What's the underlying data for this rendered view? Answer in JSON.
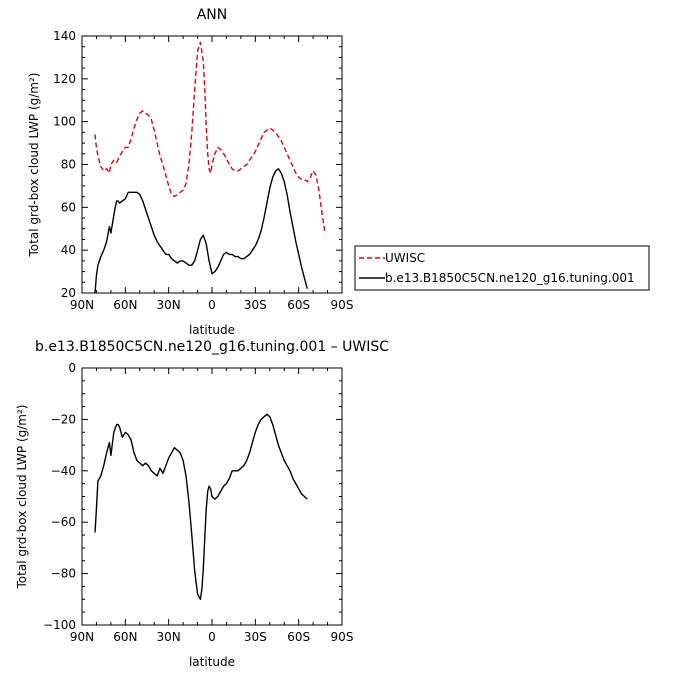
{
  "chart_data": [
    {
      "type": "line",
      "title": "ANN",
      "xlabel": "latitude",
      "ylabel": "Total grd-box cloud LWP (g/m²)",
      "xlim": [
        90,
        -90
      ],
      "ylim": [
        20,
        140
      ],
      "x_ticks": [
        90,
        60,
        30,
        0,
        -30,
        -60,
        -90
      ],
      "x_tick_labels": [
        "90N",
        "60N",
        "30N",
        "0",
        "30S",
        "60S",
        "90S"
      ],
      "y_ticks": [
        20,
        40,
        60,
        80,
        100,
        120,
        140
      ],
      "y_tick_labels": [
        "20",
        "40",
        "60",
        "80",
        "100",
        "120",
        "140"
      ],
      "legend": "right",
      "series": [
        {
          "name": "UWISC",
          "color": "#e8000b",
          "dash": "dashed",
          "x": [
            81,
            80,
            79,
            77,
            75,
            73,
            71,
            70,
            68,
            66,
            64,
            62,
            60,
            58,
            56,
            54,
            52,
            50,
            48,
            46,
            44,
            42,
            40,
            38,
            36,
            34,
            32,
            30,
            28,
            26,
            24,
            22,
            20,
            18,
            16,
            14,
            12,
            10,
            8,
            6,
            5,
            4,
            3,
            2,
            1,
            0,
            -2,
            -4,
            -6,
            -8,
            -10,
            -12,
            -14,
            -16,
            -18,
            -20,
            -22,
            -24,
            -26,
            -28,
            -30,
            -32,
            -34,
            -36,
            -38,
            -40,
            -42,
            -44,
            -46,
            -48,
            -50,
            -52,
            -54,
            -56,
            -58,
            -60,
            -62,
            -64,
            -66,
            -68,
            -70,
            -72,
            -74,
            -76,
            -78
          ],
          "y": [
            94,
            88,
            84,
            79,
            77,
            78,
            76,
            80,
            82,
            81,
            84,
            86,
            88,
            88,
            92,
            97,
            101,
            104,
            105,
            104,
            103,
            101,
            96,
            90,
            84,
            80,
            75,
            70,
            66,
            65,
            66,
            67,
            68,
            71,
            80,
            95,
            115,
            133,
            137,
            128,
            115,
            98,
            85,
            78,
            76,
            80,
            85,
            88,
            87,
            85,
            83,
            80,
            78,
            77,
            77,
            78,
            79,
            80,
            82,
            84,
            86,
            89,
            92,
            95,
            96,
            97,
            96,
            95,
            93,
            91,
            88,
            85,
            82,
            79,
            76,
            74,
            73,
            73,
            72,
            74,
            77,
            75,
            68,
            58,
            49
          ]
        },
        {
          "name": "b.e13.B1850C5CN.ne120_g16.tuning.001",
          "color": "#000000",
          "dash": "solid",
          "x": [
            81,
            80,
            79,
            77,
            75,
            73,
            71,
            70,
            69,
            67,
            66,
            65,
            64,
            62,
            60,
            58,
            56,
            54,
            52,
            50,
            48,
            46,
            44,
            42,
            40,
            38,
            36,
            34,
            32,
            30,
            28,
            26,
            24,
            22,
            20,
            18,
            16,
            14,
            12,
            10,
            8,
            6,
            4,
            2,
            0,
            -2,
            -4,
            -6,
            -8,
            -10,
            -12,
            -14,
            -16,
            -18,
            -20,
            -22,
            -24,
            -26,
            -28,
            -30,
            -32,
            -34,
            -36,
            -38,
            -40,
            -42,
            -44,
            -46,
            -48,
            -50,
            -52,
            -54,
            -56,
            -58,
            -60,
            -62,
            -64,
            -66
          ],
          "y": [
            20,
            28,
            33,
            37,
            40,
            44,
            51,
            48,
            52,
            60,
            63,
            63,
            62,
            63,
            64,
            67,
            67,
            67,
            67,
            66,
            63,
            59,
            55,
            51,
            47,
            44,
            42,
            40,
            38,
            38,
            36,
            35,
            34,
            35,
            35,
            34,
            33,
            33,
            35,
            40,
            45,
            47,
            43,
            35,
            29,
            30,
            32,
            35,
            38,
            39,
            38,
            38,
            37,
            37,
            36,
            36,
            37,
            38,
            40,
            42,
            45,
            49,
            55,
            62,
            69,
            74,
            77,
            78,
            76,
            72,
            66,
            58,
            51,
            44,
            38,
            32,
            27,
            22
          ]
        }
      ]
    },
    {
      "type": "line",
      "title": "b.e13.B1850C5CN.ne120_g16.tuning.001 – UWISC",
      "xlabel": "latitude",
      "ylabel": "Total grd-box cloud LWP (g/m²)",
      "xlim": [
        90,
        -90
      ],
      "ylim": [
        -100,
        0
      ],
      "x_ticks": [
        90,
        60,
        30,
        0,
        -30,
        -60,
        -90
      ],
      "x_tick_labels": [
        "90N",
        "60N",
        "30N",
        "0",
        "30S",
        "60S",
        "90S"
      ],
      "y_ticks": [
        -100,
        -80,
        -60,
        -40,
        -20,
        0
      ],
      "y_tick_labels": [
        "−100",
        "−80",
        "−60",
        "−40",
        "−20",
        "0"
      ],
      "series": [
        {
          "name": "",
          "color": "#000000",
          "dash": "solid",
          "x": [
            81,
            80,
            79,
            77,
            75,
            73,
            71,
            70,
            68,
            66,
            65,
            64,
            62,
            60,
            58,
            56,
            54,
            52,
            50,
            48,
            46,
            44,
            42,
            40,
            38,
            36,
            34,
            32,
            30,
            28,
            26,
            24,
            22,
            20,
            18,
            16,
            14,
            12,
            10,
            8,
            7,
            6,
            5,
            4,
            3,
            2,
            1,
            0,
            -2,
            -4,
            -6,
            -8,
            -10,
            -12,
            -14,
            -16,
            -18,
            -20,
            -22,
            -24,
            -26,
            -28,
            -30,
            -32,
            -34,
            -36,
            -38,
            -40,
            -42,
            -44,
            -46,
            -48,
            -50,
            -52,
            -54,
            -56,
            -58,
            -60,
            -62,
            -64,
            -66
          ],
          "y": [
            -64,
            -55,
            -44,
            -42,
            -38,
            -33,
            -29,
            -34,
            -25,
            -22,
            -22,
            -23,
            -27,
            -25,
            -26,
            -28,
            -33,
            -36,
            -37,
            -38,
            -37,
            -38,
            -40,
            -41,
            -42,
            -39,
            -41,
            -38,
            -35,
            -33,
            -31,
            -32,
            -33,
            -36,
            -42,
            -52,
            -65,
            -79,
            -88,
            -90,
            -86,
            -78,
            -66,
            -55,
            -48,
            -46,
            -47,
            -50,
            -51,
            -50,
            -48,
            -46,
            -45,
            -43,
            -40,
            -40,
            -40,
            -39,
            -38,
            -36,
            -33,
            -29,
            -25,
            -22,
            -20,
            -19,
            -18,
            -19,
            -22,
            -26,
            -30,
            -33,
            -36,
            -38,
            -40,
            -43,
            -45,
            -47,
            -49,
            -50,
            -51
          ]
        }
      ]
    }
  ]
}
